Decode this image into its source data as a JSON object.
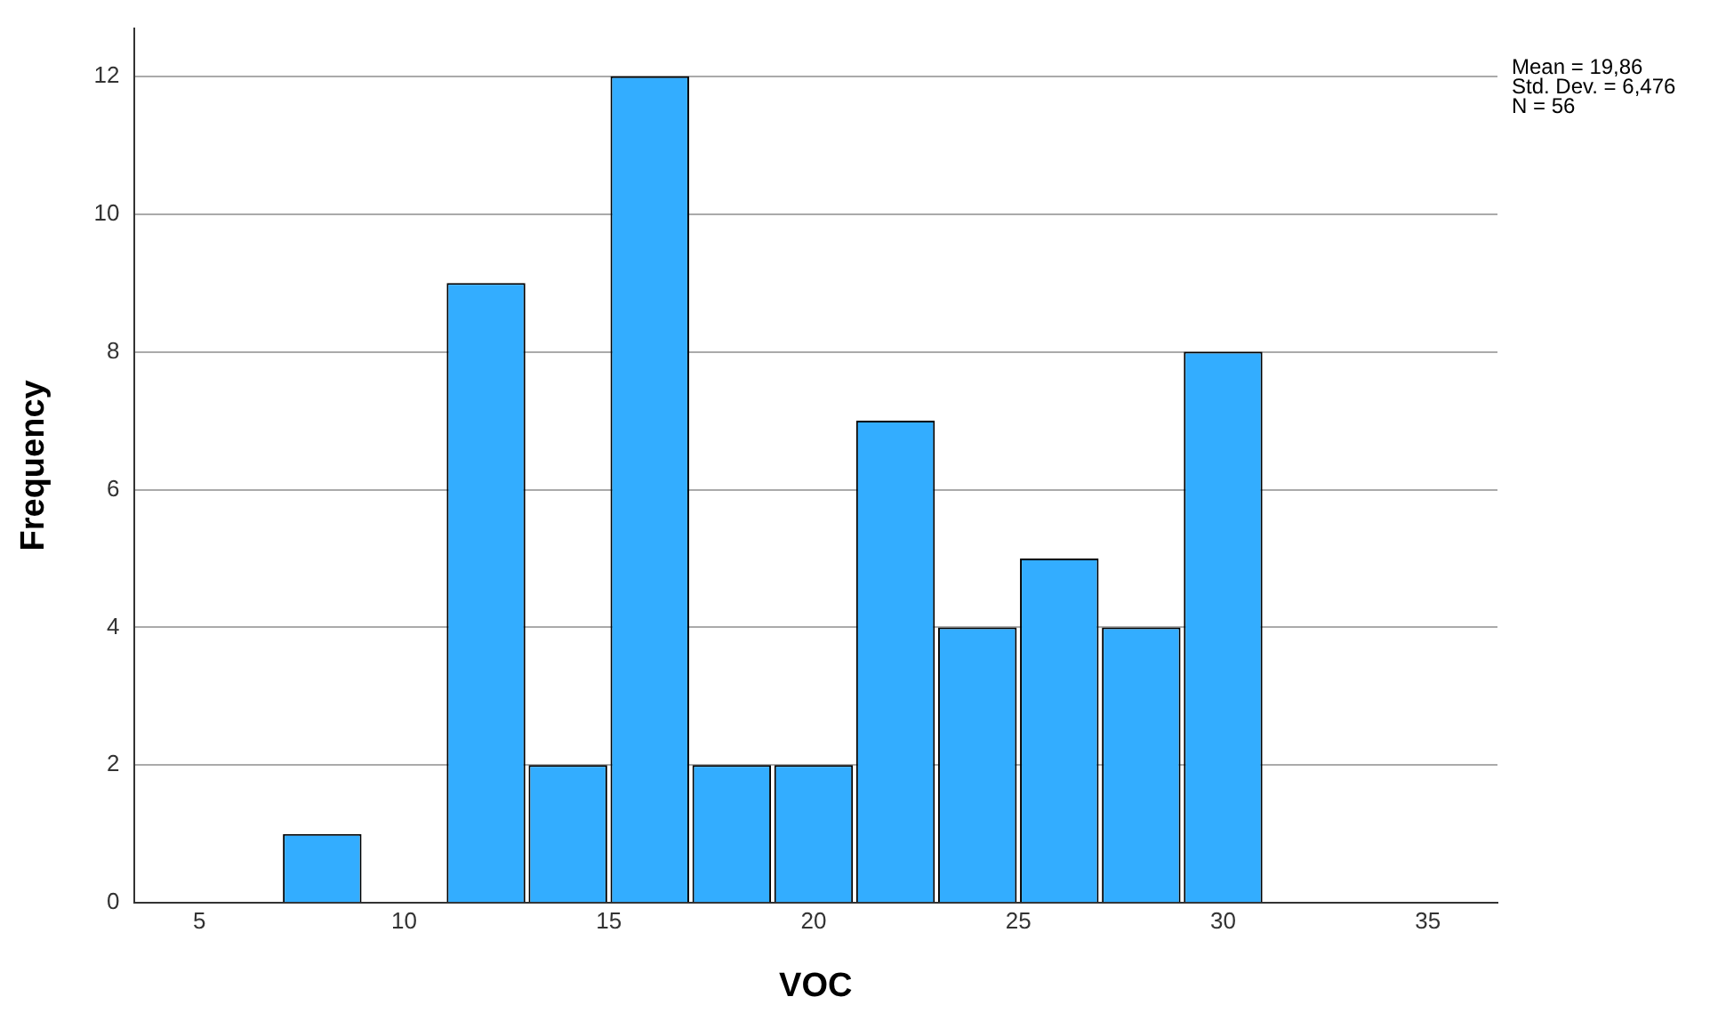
{
  "chart_data": {
    "type": "histogram",
    "xlabel": "VOC",
    "ylabel": "Frequency",
    "bins": [
      7,
      9,
      11,
      13,
      15,
      17,
      19,
      21,
      23,
      25,
      27,
      29,
      31
    ],
    "values": [
      1,
      0,
      9,
      2,
      12,
      2,
      2,
      7,
      4,
      5,
      4,
      8
    ],
    "color": "#33adff",
    "xlim": [
      3.4,
      36.7
    ],
    "xticks": [
      5,
      10,
      15,
      20,
      25,
      30,
      35
    ],
    "ylim": [
      0,
      12.7
    ],
    "yticks": [
      0,
      2,
      4,
      6,
      8,
      10,
      12
    ],
    "grid": "y",
    "legend": false,
    "annotations": [
      "Mean = 19,86",
      "Std. Dev. = 6,476",
      "N = 56"
    ]
  }
}
